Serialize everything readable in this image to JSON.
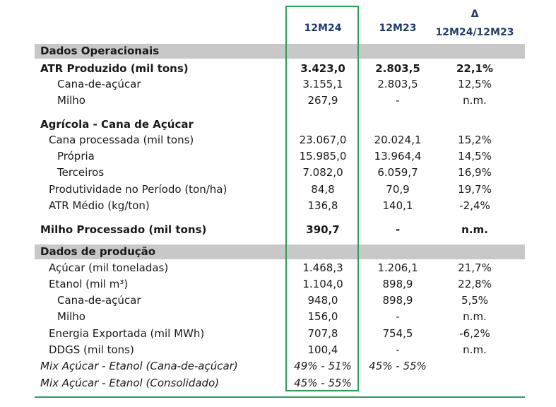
{
  "header": {
    "col_12m24": "12M24",
    "col_12m23": "12M23",
    "delta_symbol": "Δ",
    "delta_label": "12M24/12M23"
  },
  "rows": [
    {
      "label": "Dados Operacionais",
      "v24": "",
      "v23": "",
      "delta": "",
      "style": "section"
    },
    {
      "label": "ATR Produzido (mil tons)",
      "v24": "3.423,0",
      "v23": "2.803,5",
      "delta": "22,1%",
      "style": "bold"
    },
    {
      "label": "Cana-de-açúcar",
      "v24": "3.155,1",
      "v23": "2.803,5",
      "delta": "12,5%",
      "style": "indent2"
    },
    {
      "label": "Milho",
      "v24": "267,9",
      "v23": "-",
      "delta": "n.m.",
      "style": "indent2"
    },
    {
      "label": "Agrícola - Cana de Açúcar",
      "v24": "",
      "v23": "",
      "delta": "",
      "style": "bold"
    },
    {
      "label": "Cana processada (mil tons)",
      "v24": "23.067,0",
      "v23": "20.024,1",
      "delta": "15,2%",
      "style": "indent1"
    },
    {
      "label": "Própria",
      "v24": "15.985,0",
      "v23": "13.964,4",
      "delta": "14,5%",
      "style": "indent2"
    },
    {
      "label": "Terceiros",
      "v24": "7.082,0",
      "v23": "6.059,7",
      "delta": "16,9%",
      "style": "indent2"
    },
    {
      "label": "Produtividade no Período (ton/ha)",
      "v24": "84,8",
      "v23": "70,9",
      "delta": "19,7%",
      "style": "indent1"
    },
    {
      "label": "ATR Médio (kg/ton)",
      "v24": "136,8",
      "v23": "140,1",
      "delta": "-2,4%",
      "style": "indent1"
    },
    {
      "label": "Milho Processado (mil tons)",
      "v24": "390,7",
      "v23": "-",
      "delta": "n.m.",
      "style": "bold"
    },
    {
      "label": "Dados de produção",
      "v24": "",
      "v23": "",
      "delta": "",
      "style": "section"
    },
    {
      "label": "Açúcar (mil toneladas)",
      "v24": "1.468,3",
      "v23": "1.206,1",
      "delta": "21,7%",
      "style": "indent1"
    },
    {
      "label": "Etanol (mil m³)",
      "v24": "1.104,0",
      "v23": "898,9",
      "delta": "22,8%",
      "style": "indent1"
    },
    {
      "label": "Cana-de-açúcar",
      "v24": "948,0",
      "v23": "898,9",
      "delta": "5,5%",
      "style": "indent2"
    },
    {
      "label": "Milho",
      "v24": "156,0",
      "v23": "-",
      "delta": "n.m.",
      "style": "indent2"
    },
    {
      "label": "Energia Exportada (mil MWh)",
      "v24": "707,8",
      "v23": "754,5",
      "delta": "-6,2%",
      "style": "indent1"
    },
    {
      "label": "DDGS (mil tons)",
      "v24": "100,4",
      "v23": "-",
      "delta": "n.m.",
      "style": "indent1"
    },
    {
      "label": "Mix Açúcar - Etanol (Cana-de-açúcar)",
      "v24": "49% - 51%",
      "v23": "45% - 55%",
      "delta": "",
      "style": "italic"
    },
    {
      "label": "Mix Açúcar - Etanol (Consolidado)",
      "v24": "45% - 55%",
      "v23": "",
      "delta": "",
      "style": "italic"
    }
  ],
  "colors": {
    "header_text": "#1f3b6e",
    "highlight_border": "#2e9e5b",
    "section_band": "#c8c8c8"
  }
}
